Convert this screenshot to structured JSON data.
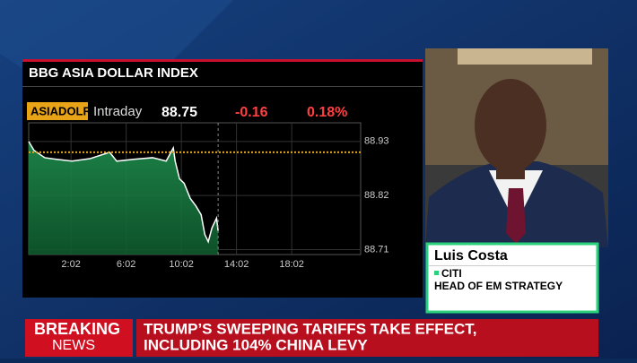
{
  "chart_data": {
    "type": "area",
    "title": "BBG ASIA DOLLAR INDEX",
    "ticker": "ASIADOLR",
    "period": "Intraday",
    "last": "88.75",
    "change": "-0.16",
    "change_pct": "0.18%",
    "x": [
      -62,
      -39,
      8,
      55,
      126,
      204,
      290,
      321,
      399,
      477,
      536,
      567,
      575,
      594,
      614,
      641,
      665,
      688,
      704,
      719,
      735,
      755,
      762
    ],
    "series": [
      {
        "color": "#ffffff",
        "values": [
          88.93,
          88.912,
          88.897,
          88.894,
          88.89,
          88.895,
          88.908,
          88.89,
          88.894,
          88.897,
          88.89,
          88.917,
          88.89,
          88.854,
          88.845,
          88.814,
          88.799,
          88.781,
          88.741,
          88.726,
          88.754,
          88.774,
          88.748
        ]
      }
    ],
    "reference": 88.908,
    "reference_color": "#e8a317",
    "area_color": "#1f8f4e",
    "xlim": [
      -62,
      1382
    ],
    "ylim": [
      88.7,
      88.968
    ],
    "xticks": [
      {
        "value": 122,
        "label": "2:02"
      },
      {
        "value": 362,
        "label": "6:02"
      },
      {
        "value": 602,
        "label": "10:02"
      },
      {
        "value": 842,
        "label": "14:02"
      },
      {
        "value": 1082,
        "label": "18:02"
      }
    ],
    "yticks": [
      88.93,
      88.82,
      88.71
    ],
    "grid": true
  },
  "lower_third": {
    "name": "Luis Costa",
    "org": "CITI",
    "role": "HEAD OF EM STRATEGY"
  },
  "banner": {
    "label_1": "BREAKING",
    "label_2": "NEWS",
    "headline_1": "TRUMP’S SWEEPING TARIFFS TAKE EFFECT,",
    "headline_2": "INCLUDING 104% CHINA LEVY"
  }
}
